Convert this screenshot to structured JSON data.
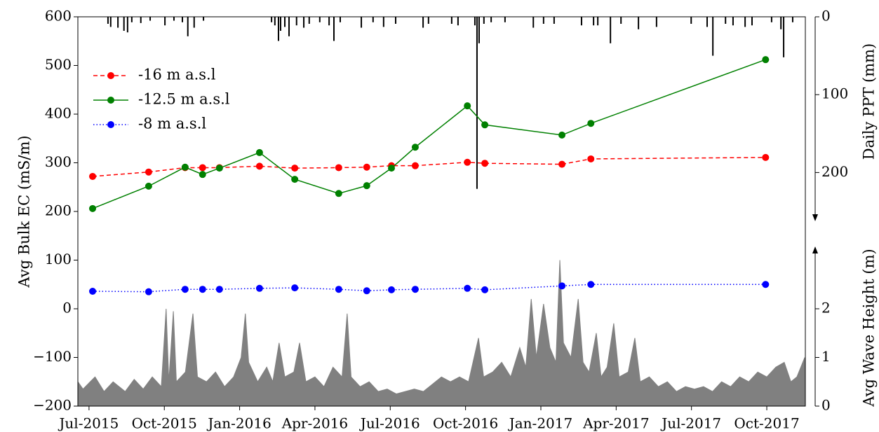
{
  "chart_data": [
    {
      "type": "line",
      "ylabel": "Avg Bulk EC (mS/m)",
      "legend": "upper left",
      "xlim": [
        2015.463,
        2017.878
      ],
      "xticks": [
        {
          "value": 2015.5,
          "label": "Jul-2015"
        },
        {
          "value": 2015.75,
          "label": "Oct-2015"
        },
        {
          "value": 2016.0,
          "label": "Jan-2016"
        },
        {
          "value": 2016.25,
          "label": "Apr-2016"
        },
        {
          "value": 2016.5,
          "label": "Jul-2016"
        },
        {
          "value": 2016.75,
          "label": "Oct-2016"
        },
        {
          "value": 2017.0,
          "label": "Jan-2017"
        },
        {
          "value": 2017.25,
          "label": "Apr-2017"
        },
        {
          "value": 2017.5,
          "label": "Jul-2017"
        },
        {
          "value": 2017.75,
          "label": "Oct-2017"
        }
      ],
      "ylim": [
        -200,
        600
      ],
      "yticks": [
        {
          "value": -200,
          "label": "−200"
        },
        {
          "value": -100,
          "label": "−100"
        },
        0,
        100,
        200,
        300,
        400,
        500,
        600
      ],
      "x": [
        2015.512,
        2015.698,
        2015.819,
        2015.877,
        2015.933,
        2016.066,
        2016.183,
        2016.329,
        2016.422,
        2016.504,
        2016.583,
        2016.756,
        2016.814,
        2017.07,
        2017.166,
        2017.746
      ],
      "series": [
        {
          "name": "-16 m a.s.l",
          "color": "#ff0000",
          "linestyle": "dashed",
          "values": [
            272,
            281,
            290,
            290,
            290,
            293,
            289,
            290,
            291,
            294,
            294,
            301,
            299,
            297,
            308,
            311
          ]
        },
        {
          "name": "-12.5 m a.s.l",
          "color": "#008000",
          "linestyle": "solid",
          "values": [
            206,
            252,
            291,
            276,
            289,
            321,
            266,
            237,
            253,
            289,
            332,
            417,
            378,
            357,
            381,
            512
          ]
        },
        {
          "name": "-8 m a.s.l",
          "color": "#0000ff",
          "linestyle": "dotted",
          "values": [
            36,
            35,
            40,
            40,
            40,
            42,
            43,
            40,
            37,
            39,
            40,
            42,
            39,
            47,
            50,
            50
          ]
        }
      ]
    },
    {
      "type": "bar",
      "ylabel": "Daily PPT (mm)",
      "color": "#000000",
      "inverted": true,
      "xlim": [
        2015.463,
        2017.878
      ],
      "ylim": [
        0,
        500
      ],
      "yticks": [
        0,
        100,
        200
      ],
      "x": [
        2015.563,
        2015.572,
        2015.596,
        2015.616,
        2015.628,
        2015.642,
        2015.672,
        2015.703,
        2015.752,
        2015.782,
        2015.81,
        2015.828,
        2015.849,
        2015.88,
        2016.106,
        2016.117,
        2016.129,
        2016.136,
        2016.15,
        2016.164,
        2016.189,
        2016.213,
        2016.231,
        2016.266,
        2016.297,
        2016.313,
        2016.334,
        2016.404,
        2016.443,
        2016.478,
        2016.518,
        2016.609,
        2016.627,
        2016.704,
        2016.725,
        2016.781,
        2016.788,
        2016.795,
        2016.811,
        2016.835,
        2016.881,
        2016.975,
        2017.009,
        2017.044,
        2017.135,
        2017.175,
        2017.189,
        2017.231,
        2017.266,
        2017.324,
        2017.384,
        2017.499,
        2017.552,
        2017.571,
        2017.613,
        2017.638,
        2017.678,
        2017.701,
        2017.766,
        2017.797,
        2017.806,
        2017.836
      ],
      "values": [
        9,
        13,
        14,
        18,
        20,
        7,
        8,
        5,
        11,
        5,
        7,
        25,
        14,
        5,
        7,
        11,
        31,
        18,
        13,
        25,
        11,
        14,
        9,
        7,
        11,
        31,
        7,
        14,
        7,
        13,
        9,
        14,
        9,
        9,
        11,
        11,
        221,
        34,
        9,
        7,
        7,
        14,
        9,
        9,
        11,
        11,
        11,
        34,
        9,
        16,
        13,
        9,
        13,
        50,
        9,
        11,
        13,
        11,
        7,
        16,
        52,
        7
      ]
    },
    {
      "type": "area",
      "ylabel": "Avg Wave Height (m)",
      "color": "#808080",
      "xlim": [
        2015.463,
        2017.878
      ],
      "ylim": [
        0,
        8
      ],
      "yticks": [
        0,
        1,
        2
      ],
      "x": [
        2015.46,
        2015.48,
        2015.52,
        2015.55,
        2015.58,
        2015.62,
        2015.65,
        2015.68,
        2015.71,
        2015.74,
        2015.756,
        2015.765,
        2015.78,
        2015.79,
        2015.82,
        2015.845,
        2015.86,
        2015.89,
        2015.92,
        2015.95,
        2015.98,
        2016.005,
        2016.019,
        2016.03,
        2016.06,
        2016.09,
        2016.11,
        2016.131,
        2016.15,
        2016.18,
        2016.199,
        2016.22,
        2016.25,
        2016.28,
        2016.31,
        2016.34,
        2016.357,
        2016.37,
        2016.4,
        2016.43,
        2016.46,
        2016.49,
        2016.52,
        2016.55,
        2016.58,
        2016.61,
        2016.64,
        2016.67,
        2016.7,
        2016.73,
        2016.76,
        2016.793,
        2016.81,
        2016.84,
        2016.87,
        2016.9,
        2016.93,
        2016.95,
        2016.968,
        2016.985,
        2017.009,
        2017.03,
        2017.05,
        2017.063,
        2017.075,
        2017.1,
        2017.124,
        2017.14,
        2017.16,
        2017.184,
        2017.2,
        2017.22,
        2017.242,
        2017.26,
        2017.29,
        2017.312,
        2017.33,
        2017.36,
        2017.39,
        2017.42,
        2017.45,
        2017.48,
        2017.51,
        2017.54,
        2017.57,
        2017.6,
        2017.63,
        2017.66,
        2017.69,
        2017.72,
        2017.75,
        2017.78,
        2017.808,
        2017.83,
        2017.85,
        2017.876
      ],
      "values": [
        0.5,
        0.35,
        0.6,
        0.3,
        0.5,
        0.3,
        0.55,
        0.35,
        0.6,
        0.4,
        2.0,
        0.5,
        1.95,
        0.5,
        0.7,
        1.9,
        0.6,
        0.5,
        0.7,
        0.4,
        0.6,
        1.0,
        1.9,
        0.9,
        0.5,
        0.8,
        0.5,
        1.3,
        0.6,
        0.7,
        1.3,
        0.5,
        0.6,
        0.4,
        0.8,
        0.6,
        1.9,
        0.6,
        0.4,
        0.5,
        0.3,
        0.35,
        0.25,
        0.3,
        0.35,
        0.3,
        0.45,
        0.6,
        0.5,
        0.6,
        0.5,
        1.4,
        0.6,
        0.7,
        0.9,
        0.6,
        1.2,
        0.8,
        2.2,
        1.0,
        2.1,
        1.2,
        0.9,
        3.0,
        1.3,
        1.0,
        2.2,
        0.9,
        0.7,
        1.5,
        0.6,
        0.8,
        1.7,
        0.6,
        0.7,
        1.4,
        0.5,
        0.6,
        0.4,
        0.5,
        0.3,
        0.4,
        0.35,
        0.4,
        0.3,
        0.5,
        0.4,
        0.6,
        0.5,
        0.7,
        0.6,
        0.8,
        0.9,
        0.5,
        0.6,
        1.0
      ]
    }
  ]
}
